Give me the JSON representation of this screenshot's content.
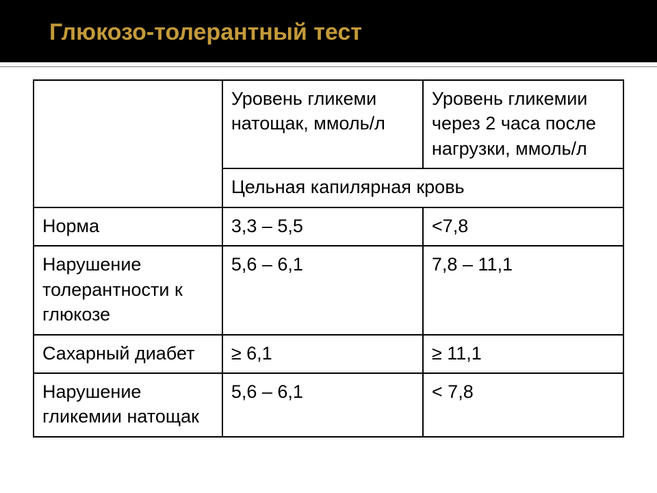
{
  "slide": {
    "title": "Глюкозо-толерантный тест",
    "title_color": "#c49a3a",
    "header_bg": "#000000",
    "background_color": "#ffffff"
  },
  "table": {
    "border_color": "#000000",
    "text_color": "#000000",
    "font_size": 27,
    "columns": [
      {
        "width_pct": 32
      },
      {
        "width_pct": 34
      },
      {
        "width_pct": 34
      }
    ],
    "header_row": {
      "col1": "",
      "col2": "Уровень гликеми натощак, ммоль/л",
      "col3": "Уровень гликемии через 2 часа после нагрузки, ммоль/л"
    },
    "subheader_row": {
      "col1": "",
      "merged_label": "Цельная капилярная кровь"
    },
    "rows": [
      {
        "label": "Норма",
        "fasting": "3,3 – 5,5",
        "after_load": "<7,8"
      },
      {
        "label": "Нарушение толерантности к глюкозе",
        "fasting": "5,6 – 6,1",
        "after_load": "7,8 – 11,1"
      },
      {
        "label": "Сахарный диабет",
        "fasting": "≥ 6,1",
        "after_load": "≥ 11,1"
      },
      {
        "label": "Нарушение гликемии натощак",
        "fasting": "5,6 – 6,1",
        "after_load": "< 7,8"
      }
    ]
  }
}
